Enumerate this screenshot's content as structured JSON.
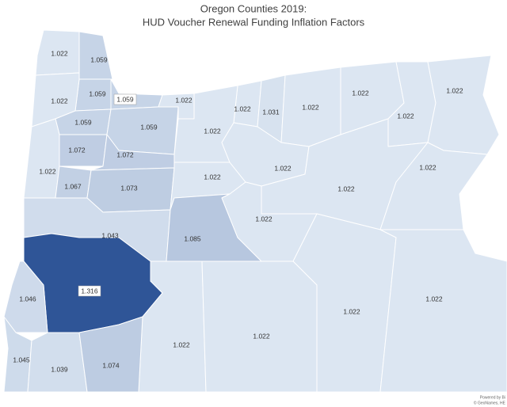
{
  "title": "Oregon Counties 2019:",
  "subtitle": "HUD Voucher Renewal Funding Inflation Factors",
  "color_scale": [
    "#dce6f2",
    "#2f5597"
  ],
  "values": [
    1.022,
    1.059,
    1.059,
    1.059,
    1.022,
    1.059,
    1.059,
    1.022,
    1.022,
    1.031,
    1.022,
    1.022,
    1.022,
    1.022,
    1.022,
    1.072,
    1.072,
    1.022,
    1.067,
    1.073,
    1.022,
    1.022,
    1.022,
    1.022,
    1.043,
    1.085,
    1.022,
    1.316,
    1.046,
    1.022,
    1.022,
    1.022,
    1.022,
    1.045,
    1.039,
    1.074
  ],
  "credits": [
    "Powered by Bi",
    "© GeoNames, HE"
  ]
}
